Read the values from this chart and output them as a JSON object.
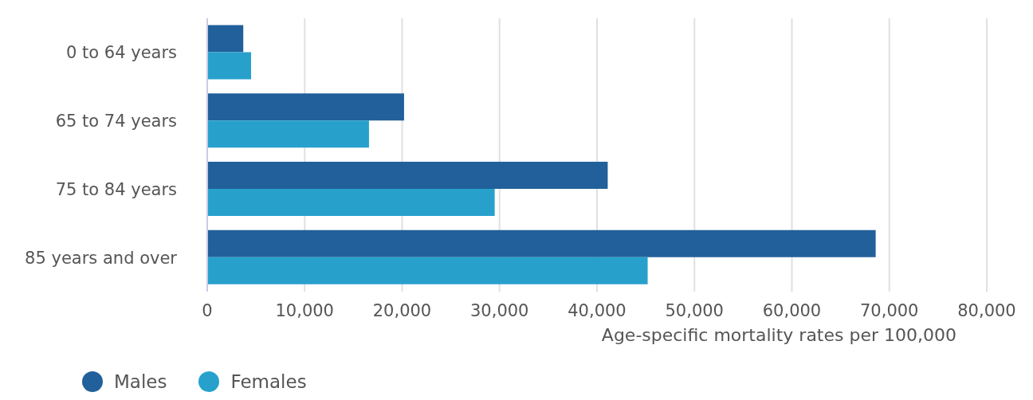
{
  "chart_data": {
    "type": "bar",
    "orientation": "horizontal",
    "categories": [
      "0 to 64 years",
      "65 to 74 years",
      "75 to 84 years",
      "85 years and over"
    ],
    "series": [
      {
        "name": "Males",
        "color": "#21609a",
        "values": [
          3700,
          20200,
          41100,
          68600
        ]
      },
      {
        "name": "Females",
        "color": "#27a1cc",
        "values": [
          4500,
          16600,
          29500,
          45200
        ]
      }
    ],
    "xlabel": "Age-specific mortality rates per 100,000",
    "xlim": [
      0,
      80000
    ],
    "xticks": [
      0,
      {
        "value": 10000,
        "label": "10,000"
      },
      {
        "value": 20000,
        "label": "20,000"
      },
      {
        "value": 30000,
        "label": "30,000"
      },
      {
        "value": 40000,
        "label": "40,000"
      },
      {
        "value": 50000,
        "label": "50,000"
      },
      {
        "value": 60000,
        "label": "60,000"
      },
      {
        "value": 70000,
        "label": "70,000"
      },
      {
        "value": 80000,
        "label": "80,000"
      }
    ],
    "grid": "x",
    "legend": "bottom left"
  }
}
